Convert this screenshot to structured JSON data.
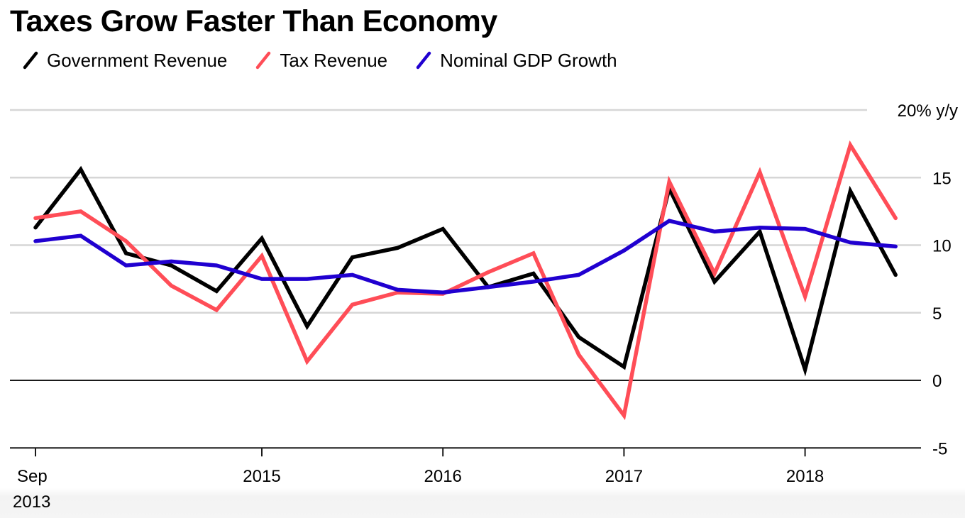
{
  "chart_data": {
    "type": "line",
    "title": "Taxes Grow Faster Than Economy",
    "xlabel": "",
    "ylabel": "% y/y",
    "y_unit_label": "20% y/y",
    "ylim": [
      -5,
      20
    ],
    "yticks": [
      20,
      15,
      10,
      5,
      0,
      -5
    ],
    "ytick_labels": [
      "20% y/y",
      "15",
      "10",
      "5",
      "0",
      "-5"
    ],
    "grid": true,
    "legend_position": "top-left",
    "x_frequency": "quarterly",
    "x_index": [
      0,
      1,
      2,
      3,
      4,
      5,
      6,
      7,
      8,
      9,
      10,
      11,
      12,
      13,
      14,
      15,
      16,
      17,
      18,
      19
    ],
    "xticks": [
      {
        "index": 0,
        "label": [
          "Sep",
          "2013"
        ]
      },
      {
        "index": 5,
        "label": [
          "2015"
        ]
      },
      {
        "index": 9,
        "label": [
          "2016"
        ]
      },
      {
        "index": 13,
        "label": [
          "2017"
        ]
      },
      {
        "index": 17,
        "label": [
          "2018"
        ]
      }
    ],
    "series": [
      {
        "name": "Government Revenue",
        "color": "#000000",
        "values": [
          11.3,
          15.6,
          9.4,
          8.5,
          6.6,
          10.5,
          4.0,
          9.1,
          9.8,
          11.2,
          6.9,
          7.9,
          3.2,
          1.0,
          14.2,
          7.3,
          11.0,
          0.8,
          14.0,
          7.8
        ]
      },
      {
        "name": "Tax Revenue",
        "color": "#ff4d57",
        "values": [
          12.0,
          12.5,
          10.3,
          7.0,
          5.2,
          9.2,
          1.4,
          5.6,
          6.5,
          6.4,
          8.0,
          9.4,
          1.9,
          -2.6,
          14.7,
          7.9,
          15.4,
          6.2,
          17.4,
          12.0
        ]
      },
      {
        "name": "Nominal GDP Growth",
        "color": "#2000d0",
        "values": [
          10.3,
          10.7,
          8.5,
          8.8,
          8.5,
          7.5,
          7.5,
          7.8,
          6.7,
          6.5,
          6.9,
          7.3,
          7.8,
          9.6,
          11.8,
          11.0,
          11.3,
          11.2,
          10.2,
          9.9
        ]
      }
    ]
  }
}
